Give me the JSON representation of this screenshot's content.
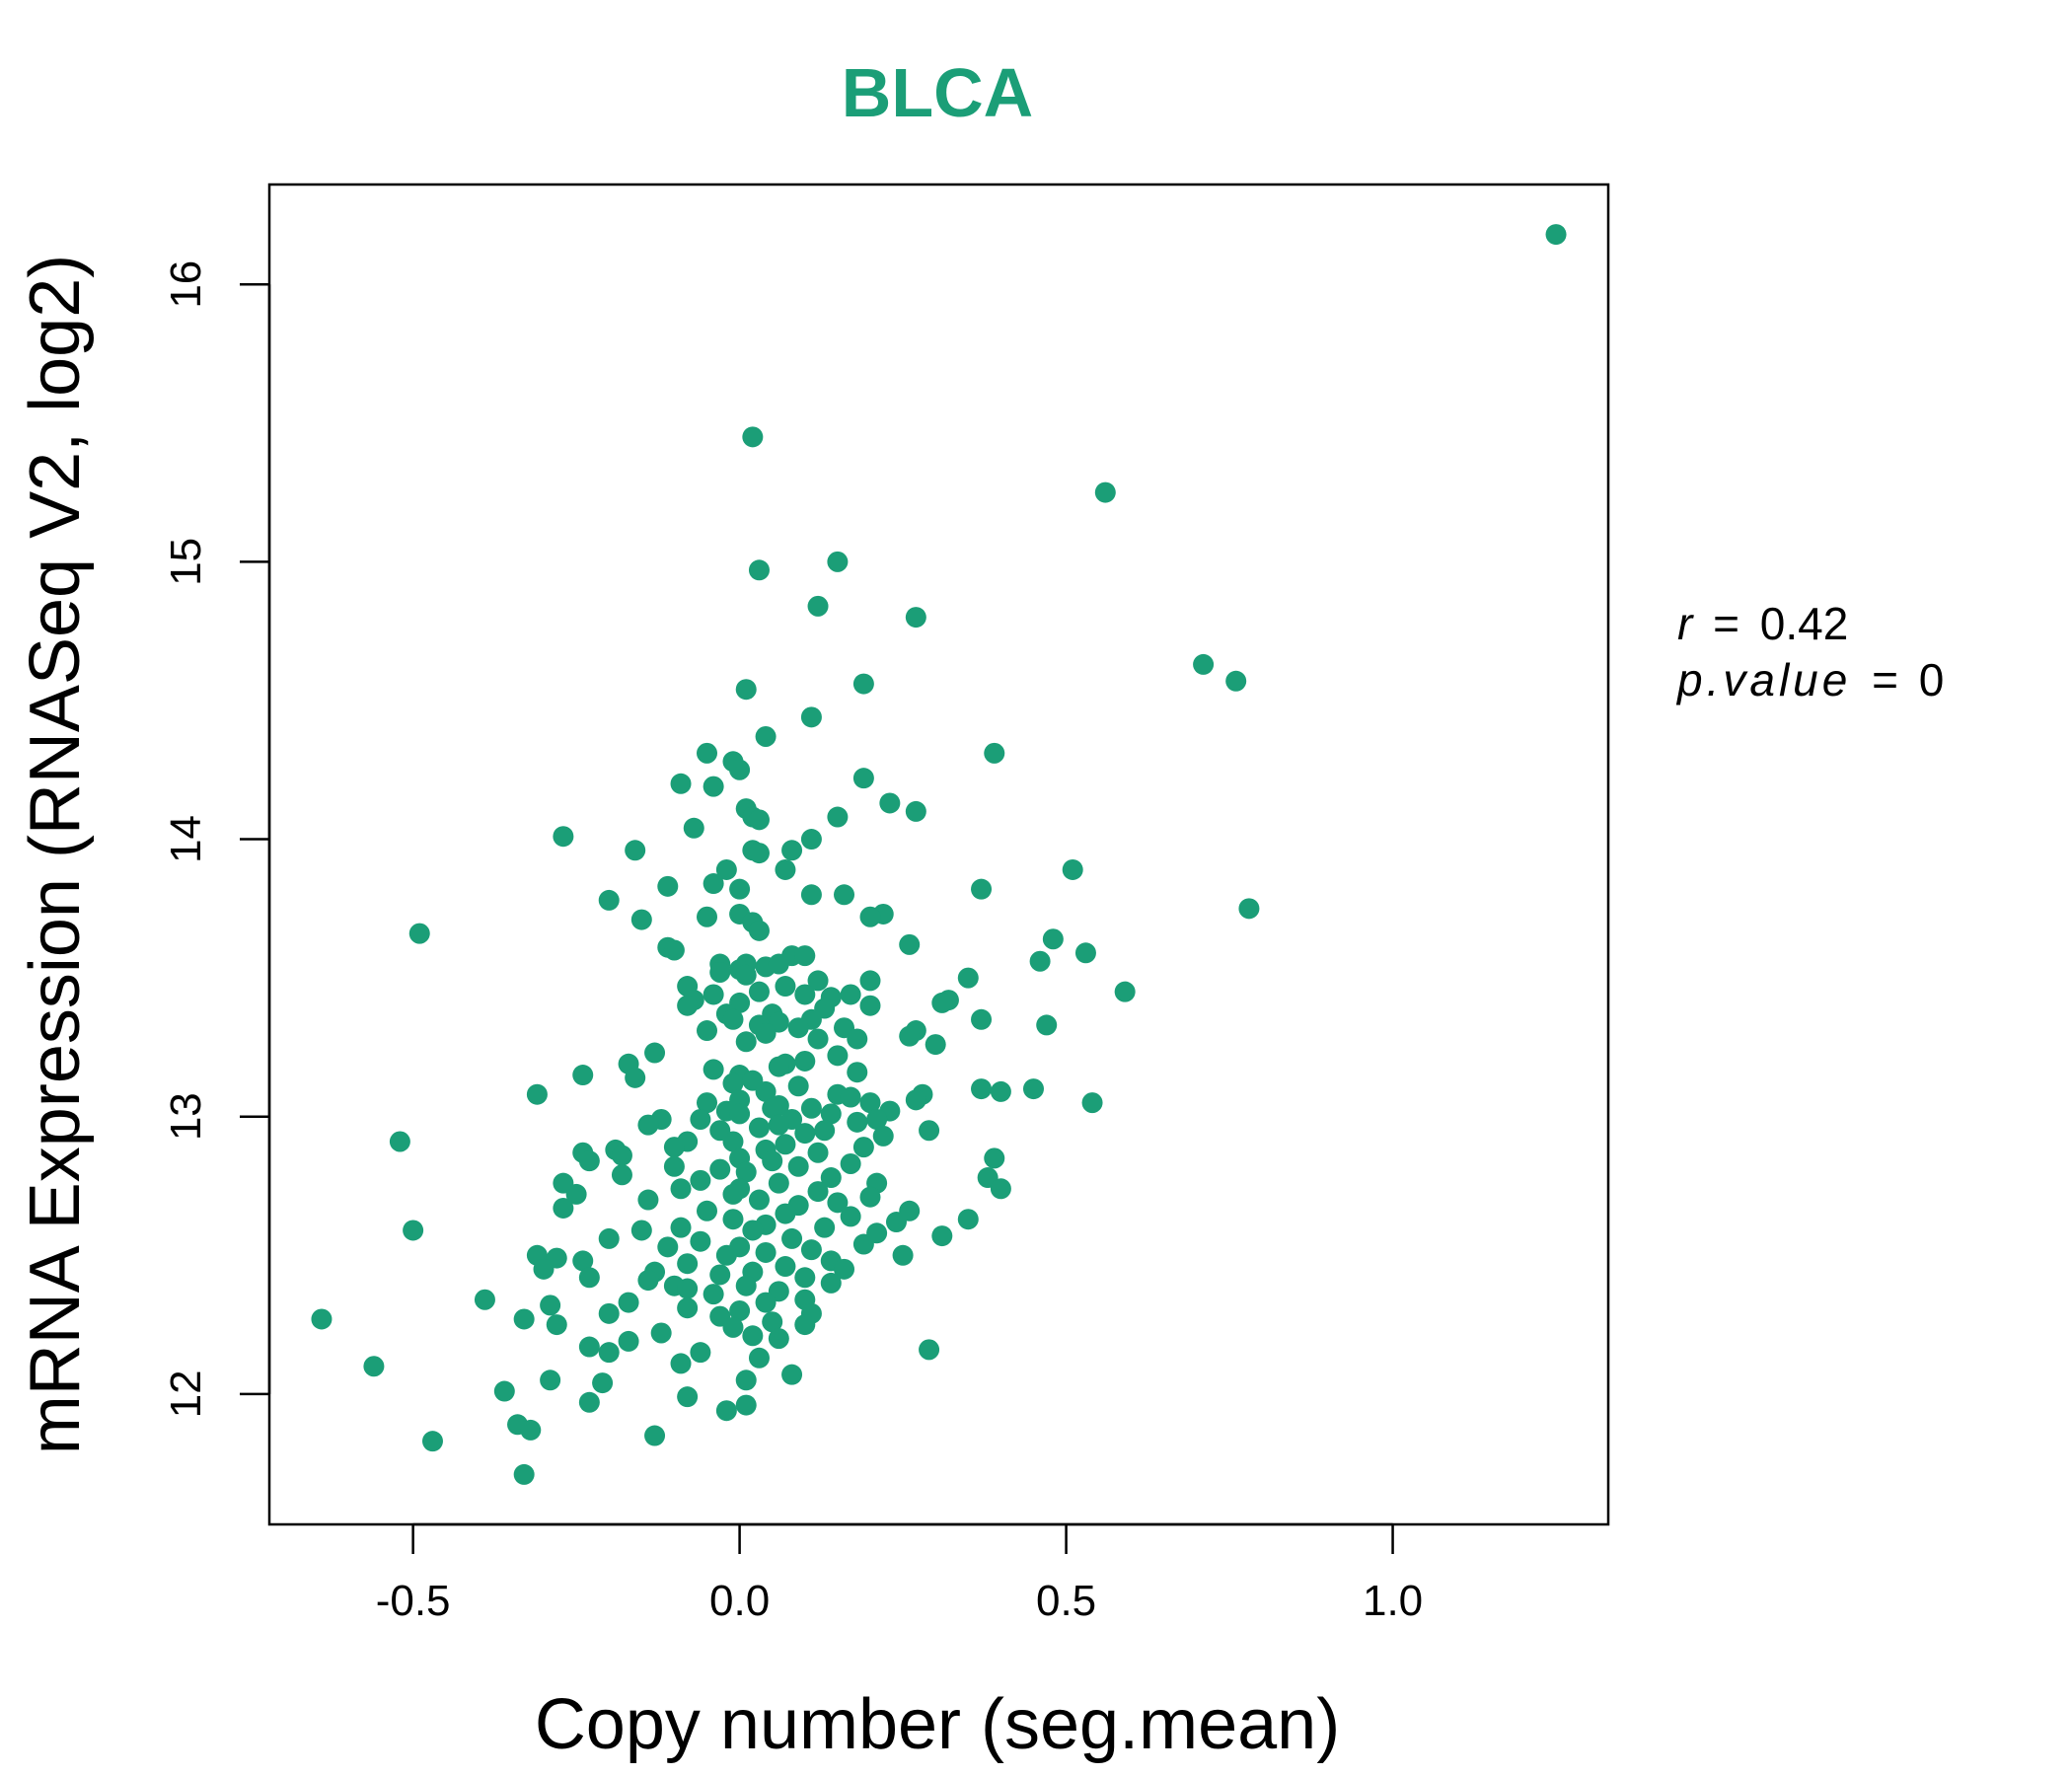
{
  "chart_data": {
    "type": "scatter",
    "title": "BLCA",
    "xlabel": "Copy number (seg.mean)",
    "ylabel": "mRNA Expression (RNASeq V2, log2)",
    "xlim": [
      -0.72,
      1.33
    ],
    "ylim": [
      11.53,
      16.36
    ],
    "xticks": [
      -0.5,
      0.0,
      0.5,
      1.0
    ],
    "xtick_labels": [
      "-0.5",
      "0.0",
      "0.5",
      "1.0"
    ],
    "yticks": [
      12,
      13,
      14,
      15,
      16
    ],
    "ytick_labels": [
      "12",
      "13",
      "14",
      "15",
      "16"
    ],
    "grid": false,
    "point_color": "#1b9e77",
    "stats": {
      "r_label": "r",
      "r_value": "0.42",
      "p_label": "p.value",
      "p_value": "0"
    },
    "points": [
      [
        1.25,
        16.18
      ],
      [
        0.02,
        15.45
      ],
      [
        0.56,
        15.25
      ],
      [
        0.15,
        15.0
      ],
      [
        0.03,
        14.97
      ],
      [
        0.12,
        14.84
      ],
      [
        0.27,
        14.8
      ],
      [
        0.71,
        14.63
      ],
      [
        0.76,
        14.57
      ],
      [
        0.19,
        14.56
      ],
      [
        0.01,
        14.54
      ],
      [
        0.11,
        14.44
      ],
      [
        0.04,
        14.37
      ],
      [
        0.39,
        14.31
      ],
      [
        -0.05,
        14.31
      ],
      [
        -0.01,
        14.28
      ],
      [
        0.0,
        14.25
      ],
      [
        0.19,
        14.22
      ],
      [
        -0.09,
        14.2
      ],
      [
        -0.04,
        14.19
      ],
      [
        0.23,
        14.13
      ],
      [
        0.27,
        14.1
      ],
      [
        0.01,
        14.11
      ],
      [
        0.02,
        14.08
      ],
      [
        0.15,
        14.08
      ],
      [
        0.03,
        14.07
      ],
      [
        -0.07,
        14.04
      ],
      [
        -0.27,
        14.01
      ],
      [
        0.11,
        14.0
      ],
      [
        -0.16,
        13.96
      ],
      [
        0.02,
        13.96
      ],
      [
        0.08,
        13.96
      ],
      [
        0.03,
        13.95
      ],
      [
        0.51,
        13.89
      ],
      [
        -0.02,
        13.89
      ],
      [
        0.07,
        13.89
      ],
      [
        -0.04,
        13.84
      ],
      [
        -0.11,
        13.83
      ],
      [
        0.37,
        13.82
      ],
      [
        0.0,
        13.82
      ],
      [
        0.11,
        13.8
      ],
      [
        0.16,
        13.8
      ],
      [
        -0.2,
        13.78
      ],
      [
        0.78,
        13.75
      ],
      [
        0.0,
        13.73
      ],
      [
        0.22,
        13.73
      ],
      [
        0.2,
        13.72
      ],
      [
        -0.05,
        13.72
      ],
      [
        0.02,
        13.7
      ],
      [
        -0.15,
        13.71
      ],
      [
        0.03,
        13.67
      ],
      [
        -0.49,
        13.66
      ],
      [
        0.48,
        13.64
      ],
      [
        0.26,
        13.62
      ],
      [
        -0.11,
        13.61
      ],
      [
        -0.1,
        13.6
      ],
      [
        0.53,
        13.59
      ],
      [
        0.08,
        13.58
      ],
      [
        0.1,
        13.58
      ],
      [
        0.46,
        13.56
      ],
      [
        -0.03,
        13.55
      ],
      [
        0.01,
        13.55
      ],
      [
        0.04,
        13.54
      ],
      [
        0.06,
        13.55
      ],
      [
        -0.03,
        13.52
      ],
      [
        0.0,
        13.53
      ],
      [
        0.01,
        13.51
      ],
      [
        0.35,
        13.5
      ],
      [
        0.12,
        13.49
      ],
      [
        0.2,
        13.49
      ],
      [
        -0.08,
        13.47
      ],
      [
        0.07,
        13.47
      ],
      [
        0.03,
        13.45
      ],
      [
        0.59,
        13.45
      ],
      [
        -0.04,
        13.44
      ],
      [
        0.17,
        13.44
      ],
      [
        0.1,
        13.44
      ],
      [
        0.14,
        13.43
      ],
      [
        0.32,
        13.42
      ],
      [
        -0.07,
        13.42
      ],
      [
        -0.08,
        13.4
      ],
      [
        0.31,
        13.41
      ],
      [
        0.0,
        13.41
      ],
      [
        0.2,
        13.4
      ],
      [
        0.13,
        13.39
      ],
      [
        0.05,
        13.37
      ],
      [
        -0.02,
        13.37
      ],
      [
        0.37,
        13.35
      ],
      [
        0.11,
        13.35
      ],
      [
        -0.01,
        13.35
      ],
      [
        0.06,
        13.34
      ],
      [
        0.47,
        13.33
      ],
      [
        0.03,
        13.33
      ],
      [
        0.16,
        13.32
      ],
      [
        0.09,
        13.32
      ],
      [
        -0.05,
        13.31
      ],
      [
        0.27,
        13.31
      ],
      [
        0.04,
        13.3
      ],
      [
        0.26,
        13.29
      ],
      [
        0.18,
        13.28
      ],
      [
        0.12,
        13.28
      ],
      [
        0.01,
        13.27
      ],
      [
        0.3,
        13.26
      ],
      [
        -0.13,
        13.23
      ],
      [
        0.15,
        13.22
      ],
      [
        0.1,
        13.2
      ],
      [
        0.07,
        13.19
      ],
      [
        -0.17,
        13.19
      ],
      [
        0.06,
        13.18
      ],
      [
        -0.04,
        13.17
      ],
      [
        -0.24,
        13.15
      ],
      [
        0.18,
        13.16
      ],
      [
        0.0,
        13.15
      ],
      [
        -0.16,
        13.14
      ],
      [
        0.02,
        13.13
      ],
      [
        -0.01,
        13.12
      ],
      [
        0.09,
        13.11
      ],
      [
        0.37,
        13.1
      ],
      [
        0.45,
        13.1
      ],
      [
        0.4,
        13.09
      ],
      [
        0.04,
        13.09
      ],
      [
        -0.31,
        13.08
      ],
      [
        0.28,
        13.08
      ],
      [
        0.15,
        13.08
      ],
      [
        0.17,
        13.07
      ],
      [
        0.27,
        13.06
      ],
      [
        0.54,
        13.05
      ],
      [
        0.0,
        13.06
      ],
      [
        -0.05,
        13.05
      ],
      [
        0.2,
        13.05
      ],
      [
        0.06,
        13.04
      ],
      [
        0.11,
        13.03
      ],
      [
        0.05,
        13.03
      ],
      [
        0.23,
        13.02
      ],
      [
        -0.02,
        13.02
      ],
      [
        0.14,
        13.01
      ],
      [
        0.0,
        13.01
      ],
      [
        -0.12,
        12.99
      ],
      [
        -0.06,
        12.99
      ],
      [
        0.08,
        12.99
      ],
      [
        0.21,
        12.99
      ],
      [
        0.18,
        12.98
      ],
      [
        -0.14,
        12.97
      ],
      [
        0.06,
        12.97
      ],
      [
        0.03,
        12.96
      ],
      [
        0.29,
        12.95
      ],
      [
        -0.03,
        12.95
      ],
      [
        0.13,
        12.95
      ],
      [
        0.1,
        12.94
      ],
      [
        0.22,
        12.93
      ],
      [
        -0.52,
        12.91
      ],
      [
        -0.08,
        12.91
      ],
      [
        -0.01,
        12.91
      ],
      [
        0.07,
        12.9
      ],
      [
        -0.1,
        12.89
      ],
      [
        0.19,
        12.89
      ],
      [
        0.04,
        12.88
      ],
      [
        -0.19,
        12.88
      ],
      [
        -0.24,
        12.87
      ],
      [
        0.12,
        12.87
      ],
      [
        -0.18,
        12.86
      ],
      [
        0.0,
        12.85
      ],
      [
        0.39,
        12.85
      ],
      [
        -0.23,
        12.84
      ],
      [
        0.05,
        12.84
      ],
      [
        0.17,
        12.83
      ],
      [
        0.09,
        12.82
      ],
      [
        -0.1,
        12.82
      ],
      [
        -0.03,
        12.81
      ],
      [
        0.01,
        12.8
      ],
      [
        -0.18,
        12.79
      ],
      [
        0.38,
        12.78
      ],
      [
        0.14,
        12.78
      ],
      [
        -0.06,
        12.77
      ],
      [
        -0.27,
        12.76
      ],
      [
        0.06,
        12.76
      ],
      [
        0.21,
        12.76
      ],
      [
        0.0,
        12.74
      ],
      [
        -0.09,
        12.74
      ],
      [
        0.4,
        12.74
      ],
      [
        0.12,
        12.73
      ],
      [
        -0.25,
        12.72
      ],
      [
        -0.01,
        12.72
      ],
      [
        0.2,
        12.71
      ],
      [
        -0.14,
        12.7
      ],
      [
        0.03,
        12.7
      ],
      [
        0.15,
        12.69
      ],
      [
        0.09,
        12.68
      ],
      [
        -0.27,
        12.67
      ],
      [
        0.26,
        12.66
      ],
      [
        -0.05,
        12.66
      ],
      [
        0.07,
        12.65
      ],
      [
        0.17,
        12.64
      ],
      [
        0.35,
        12.63
      ],
      [
        -0.01,
        12.63
      ],
      [
        0.24,
        12.62
      ],
      [
        0.04,
        12.61
      ],
      [
        -0.09,
        12.6
      ],
      [
        0.13,
        12.6
      ],
      [
        -0.15,
        12.59
      ],
      [
        0.02,
        12.59
      ],
      [
        -0.5,
        12.59
      ],
      [
        0.21,
        12.58
      ],
      [
        0.31,
        12.57
      ],
      [
        -0.2,
        12.56
      ],
      [
        0.08,
        12.56
      ],
      [
        -0.06,
        12.55
      ],
      [
        0.19,
        12.54
      ],
      [
        0.0,
        12.53
      ],
      [
        -0.11,
        12.53
      ],
      [
        0.11,
        12.52
      ],
      [
        0.04,
        12.51
      ],
      [
        -0.02,
        12.5
      ],
      [
        -0.31,
        12.5
      ],
      [
        0.25,
        12.5
      ],
      [
        -0.28,
        12.49
      ],
      [
        0.14,
        12.48
      ],
      [
        -0.24,
        12.48
      ],
      [
        -0.08,
        12.47
      ],
      [
        0.07,
        12.46
      ],
      [
        -0.3,
        12.45
      ],
      [
        0.16,
        12.45
      ],
      [
        -0.13,
        12.44
      ],
      [
        0.02,
        12.44
      ],
      [
        -0.03,
        12.43
      ],
      [
        -0.23,
        12.42
      ],
      [
        0.1,
        12.42
      ],
      [
        -0.14,
        12.41
      ],
      [
        0.14,
        12.4
      ],
      [
        -0.1,
        12.39
      ],
      [
        0.01,
        12.39
      ],
      [
        -0.08,
        12.38
      ],
      [
        0.06,
        12.37
      ],
      [
        -0.04,
        12.36
      ],
      [
        -0.39,
        12.34
      ],
      [
        0.1,
        12.34
      ],
      [
        -0.17,
        12.33
      ],
      [
        0.04,
        12.33
      ],
      [
        -0.29,
        12.32
      ],
      [
        -0.08,
        12.31
      ],
      [
        0.0,
        12.3
      ],
      [
        -0.2,
        12.29
      ],
      [
        0.11,
        12.29
      ],
      [
        -0.03,
        12.28
      ],
      [
        -0.64,
        12.27
      ],
      [
        -0.33,
        12.27
      ],
      [
        0.05,
        12.26
      ],
      [
        -0.28,
        12.25
      ],
      [
        0.1,
        12.25
      ],
      [
        -0.01,
        12.24
      ],
      [
        -0.12,
        12.22
      ],
      [
        0.02,
        12.21
      ],
      [
        -0.17,
        12.19
      ],
      [
        0.06,
        12.2
      ],
      [
        -0.23,
        12.17
      ],
      [
        0.29,
        12.16
      ],
      [
        -0.2,
        12.15
      ],
      [
        -0.06,
        12.15
      ],
      [
        0.03,
        12.13
      ],
      [
        -0.09,
        12.11
      ],
      [
        -0.56,
        12.1
      ],
      [
        0.08,
        12.07
      ],
      [
        -0.29,
        12.05
      ],
      [
        0.01,
        12.05
      ],
      [
        -0.21,
        12.04
      ],
      [
        -0.36,
        12.01
      ],
      [
        -0.08,
        11.99
      ],
      [
        -0.23,
        11.97
      ],
      [
        0.01,
        11.96
      ],
      [
        -0.02,
        11.94
      ],
      [
        -0.34,
        11.89
      ],
      [
        -0.32,
        11.87
      ],
      [
        -0.13,
        11.85
      ],
      [
        -0.47,
        11.83
      ],
      [
        -0.33,
        11.71
      ]
    ]
  }
}
